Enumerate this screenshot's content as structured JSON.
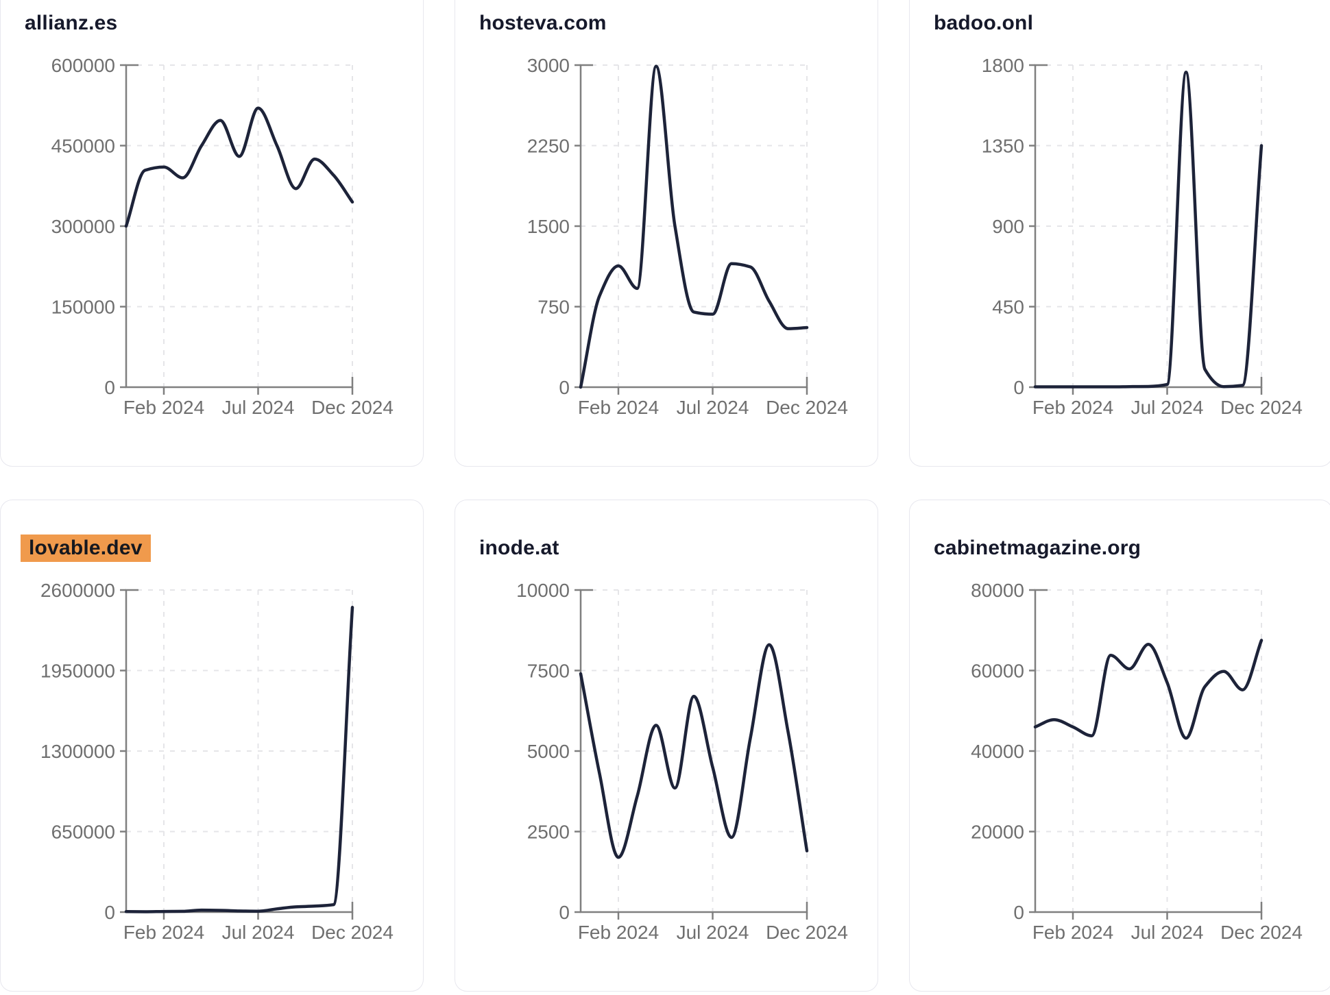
{
  "page": {
    "background": "#ffffff"
  },
  "theme": {
    "line_color": "#1d2339",
    "title_color": "#16192b",
    "tick_label_color": "#6f6f6f",
    "axis_color": "#7f7f7f",
    "grid_color": "#e5e5e8",
    "card_border_color": "#e7e7ee",
    "card_background": "#ffffff",
    "highlight_background": "#f09a4c",
    "highlight_text_color": "#15181f"
  },
  "chart_data": [
    {
      "type": "line",
      "title": "allianz.es",
      "highlighted": false,
      "x": [
        "Dec 2023",
        "Jan 2024",
        "Feb 2024",
        "Mar 2024",
        "Apr 2024",
        "May 2024",
        "Jun 2024",
        "Jul 2024",
        "Aug 2024",
        "Sep 2024",
        "Oct 2024",
        "Nov 2024",
        "Dec 2024"
      ],
      "values": [
        300000,
        404000,
        410000,
        390000,
        450000,
        497000,
        430000,
        520000,
        450000,
        370000,
        425000,
        395000,
        345000
      ],
      "ylim": [
        0,
        600000
      ],
      "yticks": [
        0,
        150000,
        300000,
        450000,
        600000
      ],
      "xticks": [
        "Feb 2024",
        "Jul 2024",
        "Dec 2024"
      ],
      "grid": "dashed",
      "legend": "none"
    },
    {
      "type": "line",
      "title": "hosteva.com",
      "highlighted": false,
      "x": [
        "Dec 2023",
        "Jan 2024",
        "Feb 2024",
        "Mar 2024",
        "Apr 2024",
        "May 2024",
        "Jun 2024",
        "Jul 2024",
        "Aug 2024",
        "Sep 2024",
        "Oct 2024",
        "Nov 2024",
        "Dec 2024"
      ],
      "values": [
        0,
        850,
        1130,
        920,
        2990,
        1500,
        700,
        680,
        1150,
        1120,
        800,
        545,
        555
      ],
      "ylim": [
        0,
        3000
      ],
      "yticks": [
        0,
        750,
        1500,
        2250,
        3000
      ],
      "xticks": [
        "Feb 2024",
        "Jul 2024",
        "Dec 2024"
      ],
      "grid": "dashed",
      "legend": "none"
    },
    {
      "type": "line",
      "title": "badoo.onl",
      "highlighted": false,
      "x": [
        "Dec 2023",
        "Jan 2024",
        "Feb 2024",
        "Mar 2024",
        "Apr 2024",
        "May 2024",
        "Jun 2024",
        "Jul 2024",
        "Aug 2024",
        "Sep 2024",
        "Oct 2024",
        "Nov 2024",
        "Dec 2024"
      ],
      "values": [
        2,
        2,
        2,
        2,
        2,
        3,
        4,
        15,
        1760,
        100,
        3,
        10,
        1350
      ],
      "ylim": [
        0,
        1800
      ],
      "yticks": [
        0,
        450,
        900,
        1350,
        1800
      ],
      "xticks": [
        "Feb 2024",
        "Jul 2024",
        "Dec 2024"
      ],
      "grid": "dashed",
      "legend": "none"
    },
    {
      "type": "line",
      "title": "lovable.dev",
      "highlighted": true,
      "x": [
        "Dec 2023",
        "Jan 2024",
        "Feb 2024",
        "Mar 2024",
        "Apr 2024",
        "May 2024",
        "Jun 2024",
        "Jul 2024",
        "Aug 2024",
        "Sep 2024",
        "Oct 2024",
        "Nov 2024",
        "Dec 2024"
      ],
      "values": [
        4000,
        3000,
        5000,
        6000,
        16000,
        14000,
        9000,
        7000,
        26000,
        42000,
        48000,
        60000,
        2460000
      ],
      "ylim": [
        0,
        2600000
      ],
      "yticks": [
        0,
        650000,
        1300000,
        1950000,
        2600000
      ],
      "xticks": [
        "Feb 2024",
        "Jul 2024",
        "Dec 2024"
      ],
      "grid": "dashed",
      "legend": "none"
    },
    {
      "type": "line",
      "title": "inode.at",
      "highlighted": false,
      "x": [
        "Dec 2023",
        "Jan 2024",
        "Feb 2024",
        "Mar 2024",
        "Apr 2024",
        "May 2024",
        "Jun 2024",
        "Jul 2024",
        "Aug 2024",
        "Sep 2024",
        "Oct 2024",
        "Nov 2024",
        "Dec 2024"
      ],
      "values": [
        7400,
        4300,
        1700,
        3600,
        5800,
        3850,
        6700,
        4500,
        2320,
        5400,
        8300,
        5600,
        1900
      ],
      "ylim": [
        0,
        10000
      ],
      "yticks": [
        0,
        2500,
        5000,
        7500,
        10000
      ],
      "xticks": [
        "Feb 2024",
        "Jul 2024",
        "Dec 2024"
      ],
      "grid": "dashed",
      "legend": "none"
    },
    {
      "type": "line",
      "title": "cabinetmagazine.org",
      "highlighted": false,
      "x": [
        "Dec 2023",
        "Jan 2024",
        "Feb 2024",
        "Mar 2024",
        "Apr 2024",
        "May 2024",
        "Jun 2024",
        "Jul 2024",
        "Aug 2024",
        "Sep 2024",
        "Oct 2024",
        "Nov 2024",
        "Dec 2024"
      ],
      "values": [
        46000,
        47800,
        46000,
        43800,
        63800,
        60400,
        66500,
        57000,
        43200,
        56000,
        59800,
        55200,
        67500
      ],
      "ylim": [
        0,
        80000
      ],
      "yticks": [
        0,
        20000,
        40000,
        60000,
        80000
      ],
      "xticks": [
        "Feb 2024",
        "Jul 2024",
        "Dec 2024"
      ],
      "grid": "dashed",
      "legend": "none"
    }
  ]
}
